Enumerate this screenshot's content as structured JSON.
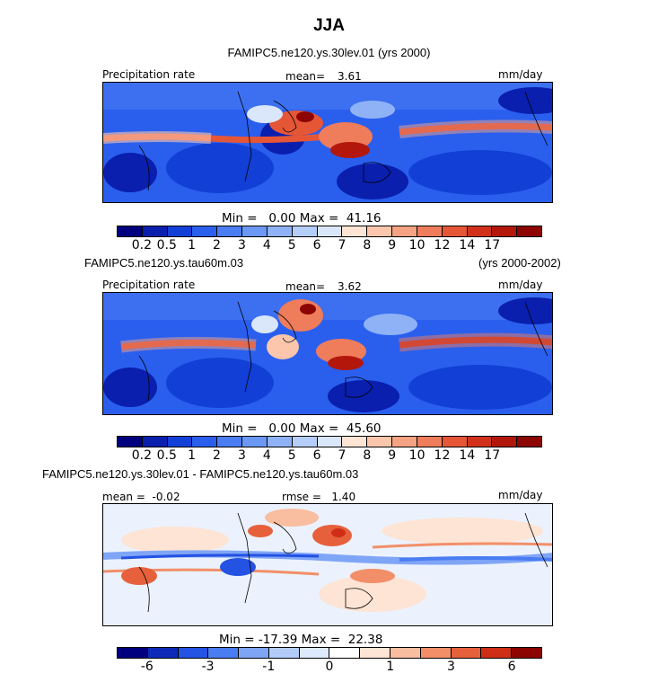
{
  "figure": {
    "title": "JJA"
  },
  "panels": [
    {
      "header": "FAMIPC5.ne120.ys.30lev.01 (yrs 2000)",
      "left_label": "Precipitation rate",
      "mean_label": "mean=",
      "mean_value": "3.61",
      "units": "mm/day",
      "min_max": "Min =   0.00 Max =  41.16"
    },
    {
      "header_left": "FAMIPC5.ne120.ys.tau60m.03",
      "header_right": "(yrs 2000-2002)",
      "left_label": "Precipitation rate",
      "mean_label": "mean=",
      "mean_value": "3.62",
      "units": "mm/day",
      "min_max": "Min =   0.00 Max =  45.60"
    },
    {
      "header": "FAMIPC5.ne120.ys.30lev.01 - FAMIPC5.ne120.ys.tau60m.03",
      "left_label": "mean =  -0.02",
      "rmse_label": "rmse =   1.40",
      "units": "mm/day",
      "min_max": "Min = -17.39 Max =  22.38"
    }
  ],
  "colorbars": {
    "precip": {
      "colors": [
        "#00007f",
        "#0a1fae",
        "#1240d6",
        "#2a5fee",
        "#4a7cf2",
        "#6b97f5",
        "#8fb2f7",
        "#b5cdf9",
        "#dae7fb",
        "#fde4d4",
        "#fbc6ab",
        "#f6a383",
        "#ef7c5b",
        "#e55637",
        "#d1311b",
        "#b3170c",
        "#8c0500"
      ],
      "tick_labels": [
        "0.2",
        "0.5",
        "1",
        "2",
        "3",
        "4",
        "5",
        "6",
        "7",
        "8",
        "9",
        "10",
        "12",
        "14",
        "17"
      ]
    },
    "diff": {
      "colors": [
        "#00007f",
        "#0d2bb8",
        "#2452e3",
        "#4a7cf2",
        "#7fa5f6",
        "#b2cbf9",
        "#dde9fc",
        "#ffffff",
        "#fde4d4",
        "#f9bd9f",
        "#f28f69",
        "#e7603c",
        "#cf2e16",
        "#8c0500"
      ],
      "tick_labels": [
        "-6",
        "-3",
        "-1",
        "0",
        "1",
        "3",
        "6"
      ]
    }
  },
  "chart_data": [
    {
      "type": "heatmap",
      "title": "FAMIPC5.ne120.ys.30lev.01 (yrs 2000)",
      "variable": "Precipitation rate",
      "units": "mm/day",
      "mean": 3.61,
      "min": 0.0,
      "max": 41.16,
      "levels": [
        0.2,
        0.5,
        1,
        2,
        3,
        4,
        5,
        6,
        7,
        8,
        9,
        10,
        12,
        14,
        17
      ]
    },
    {
      "type": "heatmap",
      "title": "FAMIPC5.ne120.ys.tau60m.03 (yrs 2000-2002)",
      "variable": "Precipitation rate",
      "units": "mm/day",
      "mean": 3.62,
      "min": 0.0,
      "max": 45.6,
      "levels": [
        0.2,
        0.5,
        1,
        2,
        3,
        4,
        5,
        6,
        7,
        8,
        9,
        10,
        12,
        14,
        17
      ]
    },
    {
      "type": "heatmap",
      "title": "FAMIPC5.ne120.ys.30lev.01 - FAMIPC5.ne120.ys.tau60m.03",
      "units": "mm/day",
      "mean": -0.02,
      "rmse": 1.4,
      "min": -17.39,
      "max": 22.38,
      "levels": [
        -6,
        -3,
        -1,
        0,
        1,
        3,
        6
      ]
    }
  ]
}
